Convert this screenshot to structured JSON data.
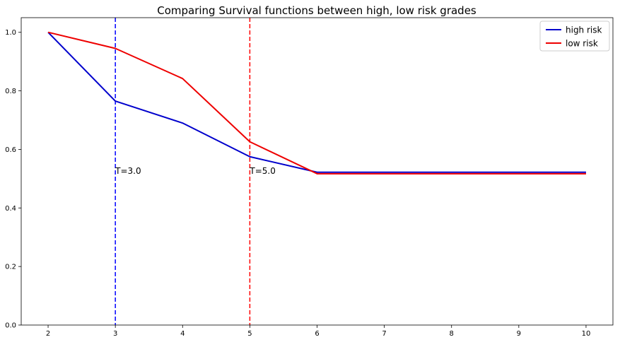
{
  "chart_data": {
    "type": "line",
    "title": "Comparing Survival functions between high, low risk grades",
    "xlabel": "",
    "ylabel": "",
    "xlim": [
      1.6,
      10.4
    ],
    "ylim": [
      0.0,
      1.05
    ],
    "x_ticks": [
      2,
      3,
      4,
      5,
      6,
      7,
      8,
      9,
      10
    ],
    "y_ticks": [
      "0.0",
      "0.2",
      "0.4",
      "0.6",
      "0.8",
      "1.0"
    ],
    "x": [
      2,
      3,
      4,
      5,
      6,
      7,
      8,
      9,
      10
    ],
    "series": [
      {
        "name": "high risk",
        "color": "#0000cc",
        "values": [
          1.0,
          0.765,
          0.69,
          0.575,
          0.522,
          0.522,
          0.522,
          0.522,
          0.522
        ]
      },
      {
        "name": "low risk",
        "color": "#ee0000",
        "values": [
          1.0,
          0.945,
          0.842,
          0.626,
          0.517,
          0.517,
          0.517,
          0.517,
          0.517
        ]
      }
    ],
    "vlines": [
      {
        "x": 3.0,
        "label": "T=3.0",
        "color": "#0000ff",
        "label_y": 0.5
      },
      {
        "x": 5.0,
        "label": "T=5.0",
        "color": "#ff0000",
        "label_y": 0.5
      }
    ],
    "legend_position": "top-right",
    "grid": false
  }
}
